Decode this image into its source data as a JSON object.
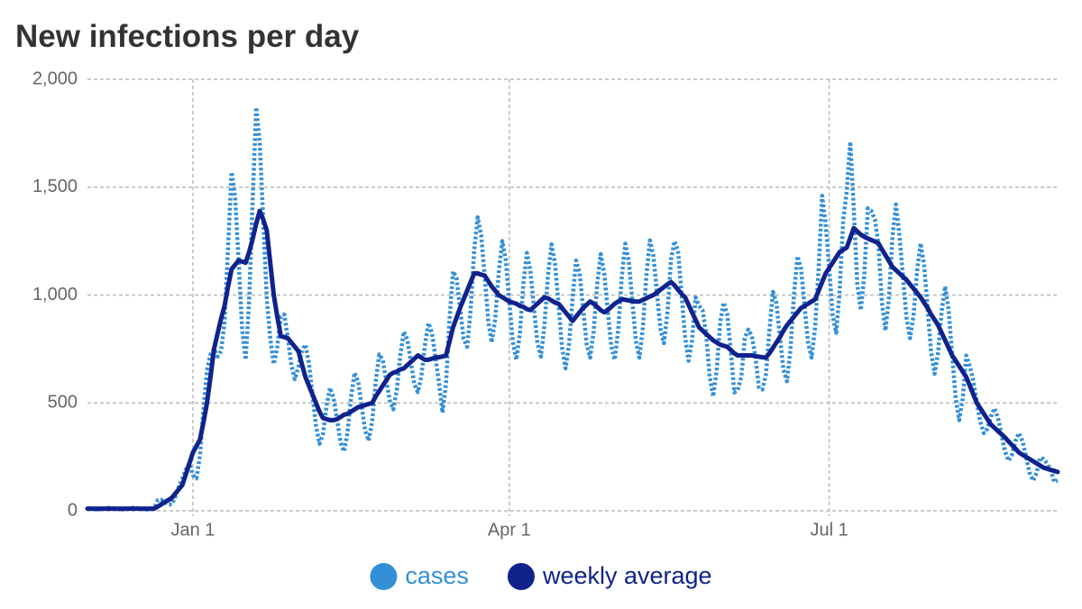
{
  "chart_data": {
    "type": "line",
    "title": "New infections per day",
    "categories": [
      null,
      null,
      null,
      null,
      null,
      null,
      null,
      null,
      null,
      null,
      null,
      null,
      null,
      null,
      null,
      null,
      null,
      null,
      null,
      null,
      null,
      null,
      null,
      null,
      null,
      null,
      null,
      null,
      null,
      null,
      "Jan 1",
      null,
      null,
      null,
      null,
      null,
      null,
      null,
      null,
      null,
      null,
      null,
      null,
      null,
      null,
      null,
      null,
      null,
      null,
      null,
      null,
      null,
      null,
      null,
      null,
      null,
      null,
      null,
      null,
      null,
      null,
      null,
      null,
      null,
      null,
      null,
      null,
      null,
      null,
      null,
      null,
      null,
      null,
      null,
      null,
      null,
      null,
      null,
      null,
      null,
      null,
      null,
      null,
      null,
      null,
      null,
      null,
      null,
      null,
      null,
      null,
      null,
      null,
      null,
      null,
      null,
      null,
      null,
      null,
      null,
      null,
      null,
      null,
      null,
      null,
      null,
      null,
      null,
      null,
      null,
      null,
      null,
      null,
      null,
      null,
      null,
      null,
      null,
      null,
      null,
      "Apr 1",
      null,
      null,
      null,
      null,
      null,
      null,
      null,
      null,
      null,
      null,
      null,
      null,
      null,
      null,
      null,
      null,
      null,
      null,
      null,
      null,
      null,
      null,
      null,
      null,
      null,
      null,
      null,
      null,
      null,
      null,
      null,
      null,
      null,
      null,
      null,
      null,
      null,
      null,
      null,
      null,
      null,
      null,
      null,
      null,
      null,
      null,
      null,
      null,
      null,
      null,
      null,
      null,
      null,
      null,
      null,
      null,
      null,
      null,
      null,
      null,
      null,
      null,
      null,
      null,
      null,
      null,
      null,
      null,
      null,
      null,
      null,
      null,
      null,
      null,
      null,
      null,
      null,
      null,
      null,
      null,
      null,
      null,
      null,
      null,
      null,
      null,
      null,
      null,
      null,
      null,
      "Jul 1",
      null,
      null,
      null,
      null,
      null,
      null,
      null,
      null,
      null,
      null,
      null,
      null,
      null,
      null,
      null,
      null,
      null,
      null,
      null,
      null,
      null,
      null,
      null,
      null,
      null,
      null,
      null,
      null,
      null,
      null,
      null,
      null,
      null,
      null,
      null,
      null,
      null,
      null,
      null,
      null,
      null,
      null,
      null,
      null,
      null,
      null,
      null,
      null,
      null,
      null,
      null,
      null,
      null,
      null,
      null,
      null,
      null,
      null,
      null,
      null,
      null,
      null,
      null,
      null,
      null
    ],
    "series": [
      {
        "name": "cases",
        "color": "#3490d6",
        "style": "dotted",
        "values": [
          13,
          10,
          7,
          6,
          8,
          12,
          14,
          13,
          10,
          7,
          6,
          8,
          12,
          14,
          13,
          10,
          7,
          6,
          8,
          12,
          50,
          51,
          40,
          29,
          30,
          65,
          112,
          150,
          191,
          220,
          165,
          150,
          255,
          470,
          650,
          725,
          750,
          715,
          740,
          875,
          1220,
          1570,
          1455,
          1160,
          840,
          700,
          975,
          1440,
          1870,
          1705,
          1350,
          985,
          800,
          680,
          760,
          900,
          910,
          800,
          675,
          610,
          665,
          740,
          770,
          685,
          540,
          395,
          310,
          355,
          485,
          570,
          525,
          425,
          316,
          275,
          365,
          528,
          640,
          599,
          485,
          371,
          325,
          415,
          598,
          725,
          699,
          605,
          511,
          470,
          560,
          723,
          830,
          794,
          690,
          586,
          550,
          625,
          768,
          870,
          824,
          710,
          593,
          455,
          590,
          889,
          1110,
          1077,
          940,
          798,
          760,
          930,
          1204,
          1360,
          1277,
          1090,
          883,
          780,
          890,
          1104,
          1250,
          1162,
          970,
          783,
          700,
          820,
          1049,
          1195,
          1112,
          945,
          778,
          715,
          860,
          1089,
          1235,
          1147,
          960,
          758,
          660,
          770,
          984,
          1160,
          1102,
          940,
          773,
          710,
          830,
          1049,
          1190,
          1102,
          930,
          763,
          700,
          840,
          1084,
          1238,
          1157,
          972,
          788,
          710,
          848,
          1089,
          1253,
          1182,
          1012,
          843,
          777,
          920,
          1164,
          1250,
          1207,
          1005,
          808,
          695,
          790,
          989,
          950,
          930,
          820,
          623,
          530,
          650,
          874,
          965,
          910,
          745,
          548,
          560,
          620,
          800,
          840,
          810,
          717,
          574,
          562,
          630,
          834,
          1015,
          962,
          805,
          653,
          600,
          750,
          1004,
          1180,
          1122,
          950,
          778,
          710,
          850,
          1124,
          1460,
          1330,
          1125,
          905,
          825,
          1025,
          1350,
          1480,
          1710,
          1400,
          1050,
          930,
          1095,
          1402,
          1390,
          1350,
          1240,
          967,
          835,
          983,
          1270,
          1420,
          1275,
          1085,
          895,
          800,
          905,
          1110,
          1240,
          1140,
          940,
          735,
          635,
          735,
          925,
          1040,
          930,
          720,
          520,
          420,
          520,
          720,
          670,
          603,
          500,
          412,
          360,
          380,
          436,
          475,
          433,
          355,
          277,
          232,
          260,
          324,
          360,
          323,
          250,
          177,
          140,
          175,
          246,
          240,
          220,
          190,
          135,
          140
        ]
      },
      {
        "name": "weekly average",
        "color": "#10228c",
        "style": "solid",
        "values": [
          10,
          10,
          10,
          10,
          10,
          10,
          10,
          10,
          10,
          10,
          10,
          10,
          10,
          10,
          10,
          10,
          10,
          10,
          10,
          10,
          20,
          30,
          40,
          50,
          60,
          80,
          100,
          120,
          170,
          220,
          270,
          300,
          330,
          410,
          500,
          620,
          750,
          820,
          890,
          950,
          1040,
          1120,
          1140,
          1160,
          1155,
          1150,
          1200,
          1260,
          1330,
          1390,
          1350,
          1300,
          1150,
          1000,
          900,
          810,
          805,
          800,
          780,
          760,
          740,
          680,
          620,
          580,
          540,
          500,
          460,
          430,
          425,
          420,
          420,
          425,
          435,
          445,
          450,
          460,
          470,
          480,
          485,
          490,
          495,
          500,
          530,
          555,
          580,
          605,
          630,
          640,
          645,
          655,
          660,
          675,
          690,
          705,
          720,
          710,
          700,
          700,
          705,
          710,
          712,
          715,
          720,
          785,
          850,
          895,
          940,
          980,
          1020,
          1060,
          1100,
          1100,
          1095,
          1090,
          1065,
          1040,
          1020,
          1000,
          990,
          980,
          970,
          965,
          960,
          950,
          945,
          935,
          930,
          945,
          960,
          975,
          990,
          985,
          975,
          965,
          960,
          940,
          920,
          900,
          880,
          900,
          920,
          940,
          955,
          970,
          960,
          945,
          930,
          920,
          930,
          945,
          960,
          970,
          980,
          978,
          975,
          972,
          970,
          970,
          978,
          985,
          993,
          1000,
          1012,
          1025,
          1037,
          1050,
          1060,
          1045,
          1025,
          1005,
          990,
          955,
          920,
          885,
          850,
          835,
          820,
          805,
          790,
          780,
          770,
          765,
          760,
          745,
          730,
          720,
          720,
          720,
          720,
          720,
          717,
          714,
          712,
          710,
          730,
          755,
          780,
          805,
          835,
          860,
          880,
          900,
          920,
          940,
          950,
          960,
          970,
          980,
          1020,
          1060,
          1100,
          1125,
          1150,
          1175,
          1200,
          1210,
          1220,
          1265,
          1310,
          1295,
          1280,
          1270,
          1262,
          1255,
          1248,
          1240,
          1212,
          1185,
          1158,
          1130,
          1115,
          1100,
          1085,
          1070,
          1050,
          1030,
          1010,
          990,
          965,
          940,
          910,
          885,
          860,
          825,
          790,
          755,
          720,
          695,
          670,
          645,
          620,
          580,
          540,
          500,
          475,
          450,
          425,
          400,
          385,
          370,
          355,
          340,
          322,
          305,
          288,
          270,
          260,
          250,
          240,
          230,
          220,
          210,
          200,
          195,
          190,
          185,
          180
        ]
      }
    ],
    "ylim": [
      0,
      2000
    ],
    "yticks": [
      0,
      500,
      {
        "value": 1000,
        "label": "1,000"
      },
      {
        "value": 1500,
        "label": "1,500"
      },
      {
        "value": 2000,
        "label": "2,000"
      }
    ],
    "grid": true,
    "legend": "bottom"
  }
}
